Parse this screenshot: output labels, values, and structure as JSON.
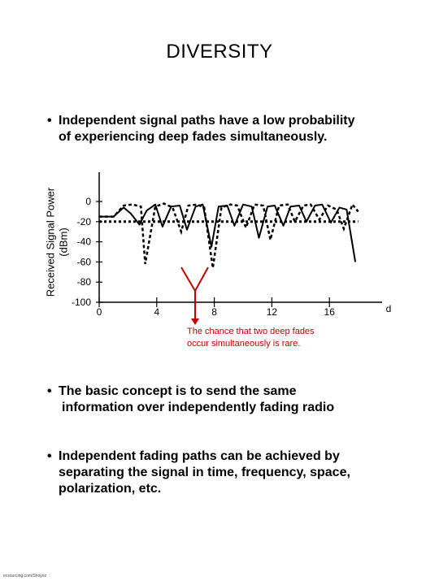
{
  "title": "DIVERSITY",
  "bullets": [
    {
      "marker": "•",
      "line1": "Independent signal paths have a low probability",
      "line2": "of experiencing deep fades simultaneously."
    },
    {
      "marker": "•",
      "line1": "The basic concept is to send the same",
      "line2": "information over independently fading radio"
    },
    {
      "marker": "•",
      "line1": "Independent fading paths can be achieved by",
      "line2": "separating the signal in time, frequency, space,",
      "line3": "polarization, etc."
    }
  ],
  "annotation": {
    "line1": "The chance that two deep fades",
    "line2": "occur simultaneously is rare.",
    "color": "#c00000"
  },
  "footer": "ecsourcing.com/Shoyoz",
  "chart_data": {
    "type": "line",
    "ylabel": "Received Signal Power",
    "yunit": "(dBm)",
    "xlabel": "d",
    "x_ticks": [
      "0",
      "4",
      "8",
      "12",
      "16"
    ],
    "y_ticks": [
      "0",
      "-20",
      "-40",
      "-60",
      "-80",
      "-100"
    ],
    "xlim": [
      0,
      20
    ],
    "ylim": [
      -100,
      0
    ],
    "series": [
      {
        "style": "solid",
        "x": [
          0,
          1.0,
          1.7,
          2.2,
          2.8,
          3.3,
          3.9,
          4.4,
          5.0,
          5.6,
          6.1,
          6.7,
          7.2,
          7.8,
          8.3,
          8.9,
          9.4,
          10.0,
          10.6,
          11.1,
          11.7,
          12.2,
          12.8,
          13.3,
          13.9,
          14.4,
          15.0,
          15.5,
          16.1,
          16.7,
          17.2,
          17.8
        ],
        "y": [
          -15,
          -15,
          -6,
          -12,
          -23,
          -9,
          -3,
          -25,
          -5,
          -4,
          -28,
          -5,
          -3,
          -45,
          -5,
          -4,
          -24,
          -3,
          -5,
          -36,
          -5,
          -4,
          -24,
          -5,
          -4,
          -20,
          -4,
          -3,
          -21,
          -6,
          -8,
          -60
        ]
      },
      {
        "style": "dashed",
        "x": [
          0,
          1.0,
          1.7,
          2.3,
          2.9,
          3.2,
          3.9,
          4.5,
          5.1,
          5.7,
          6.2,
          6.8,
          7.3,
          7.9,
          8.5,
          9.1,
          9.6,
          10.2,
          10.8,
          11.4,
          11.9,
          12.5,
          13.1,
          13.6,
          14.2,
          14.7,
          15.3,
          15.9,
          16.5,
          17.0,
          17.6,
          18.0
        ],
        "y": [
          -15,
          -15,
          -4,
          -3,
          -5,
          -62,
          -5,
          -2,
          -6,
          -30,
          -4,
          -3,
          -6,
          -66,
          -6,
          -3,
          -4,
          -26,
          -3,
          -4,
          -38,
          -4,
          -3,
          -20,
          -4,
          -3,
          -18,
          -4,
          -8,
          -27,
          -3,
          -10
        ]
      },
      {
        "style": "dotted",
        "x": [
          0,
          18
        ],
        "y": [
          -20,
          -20
        ]
      }
    ]
  }
}
